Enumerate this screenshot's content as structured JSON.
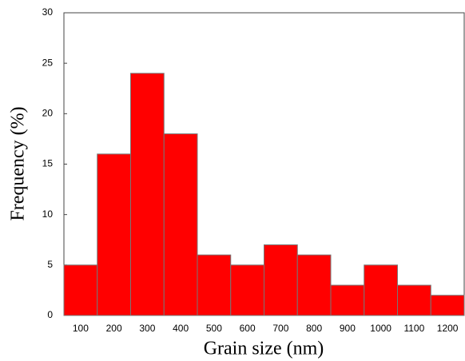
{
  "chart_data": {
    "type": "bar",
    "x_label": "Grain size (nm)",
    "y_label": "Frequency (%)",
    "categories": [
      "100",
      "200",
      "300",
      "400",
      "500",
      "600",
      "700",
      "800",
      "900",
      "1000",
      "1100",
      "1200"
    ],
    "values": [
      5,
      16,
      24,
      18,
      6,
      5,
      7,
      6,
      3,
      5,
      3,
      2
    ],
    "color": "#ff0000",
    "ylim": [
      0,
      30
    ],
    "yticks": [
      0,
      5,
      10,
      15,
      20,
      25,
      30
    ]
  }
}
